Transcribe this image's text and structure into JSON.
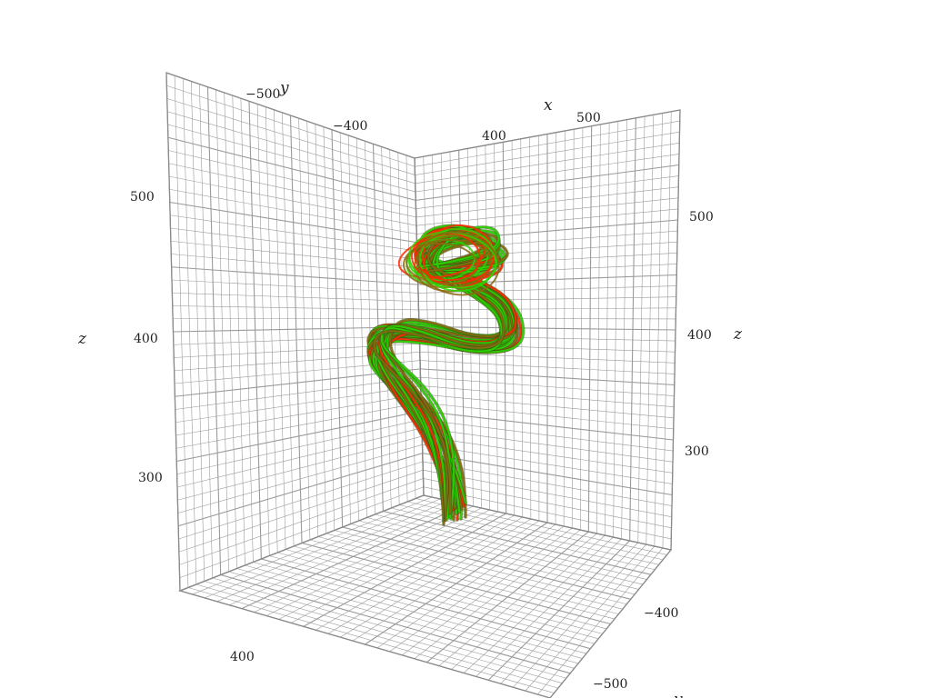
{
  "chart_data": {
    "type": "3d-streamlines",
    "title": "",
    "axes": {
      "x": {
        "label": "x",
        "ticks": [
          "400",
          "500"
        ]
      },
      "y": {
        "label": "y",
        "ticks": [
          "−500",
          "−400"
        ]
      },
      "z": {
        "label": "z",
        "ticks": [
          "300",
          "400",
          "500"
        ]
      }
    },
    "bottom_ticks": {
      "x": [
        "400"
      ],
      "y": [
        "−400",
        "−500"
      ],
      "y_label": "y"
    },
    "grid": true,
    "colors": {
      "grid": "#9a9a9a",
      "low": "#2bd300",
      "mid": "#8a6a10",
      "high": "#ff2a00"
    },
    "streamlines": {
      "count": 26,
      "path": [
        [
          492,
          565
        ],
        [
          490,
          535
        ],
        [
          482,
          500
        ],
        [
          468,
          468
        ],
        [
          446,
          438
        ],
        [
          420,
          410
        ],
        [
          404,
          385
        ],
        [
          418,
          362
        ],
        [
          462,
          366
        ],
        [
          512,
          380
        ],
        [
          555,
          376
        ],
        [
          553,
          340
        ],
        [
          522,
          318
        ],
        [
          488,
          302
        ],
        [
          458,
          290
        ],
        [
          466,
          268
        ],
        [
          498,
          256
        ],
        [
          532,
          262
        ],
        [
          540,
          285
        ],
        [
          502,
          298
        ],
        [
          462,
          302
        ]
      ]
    }
  }
}
